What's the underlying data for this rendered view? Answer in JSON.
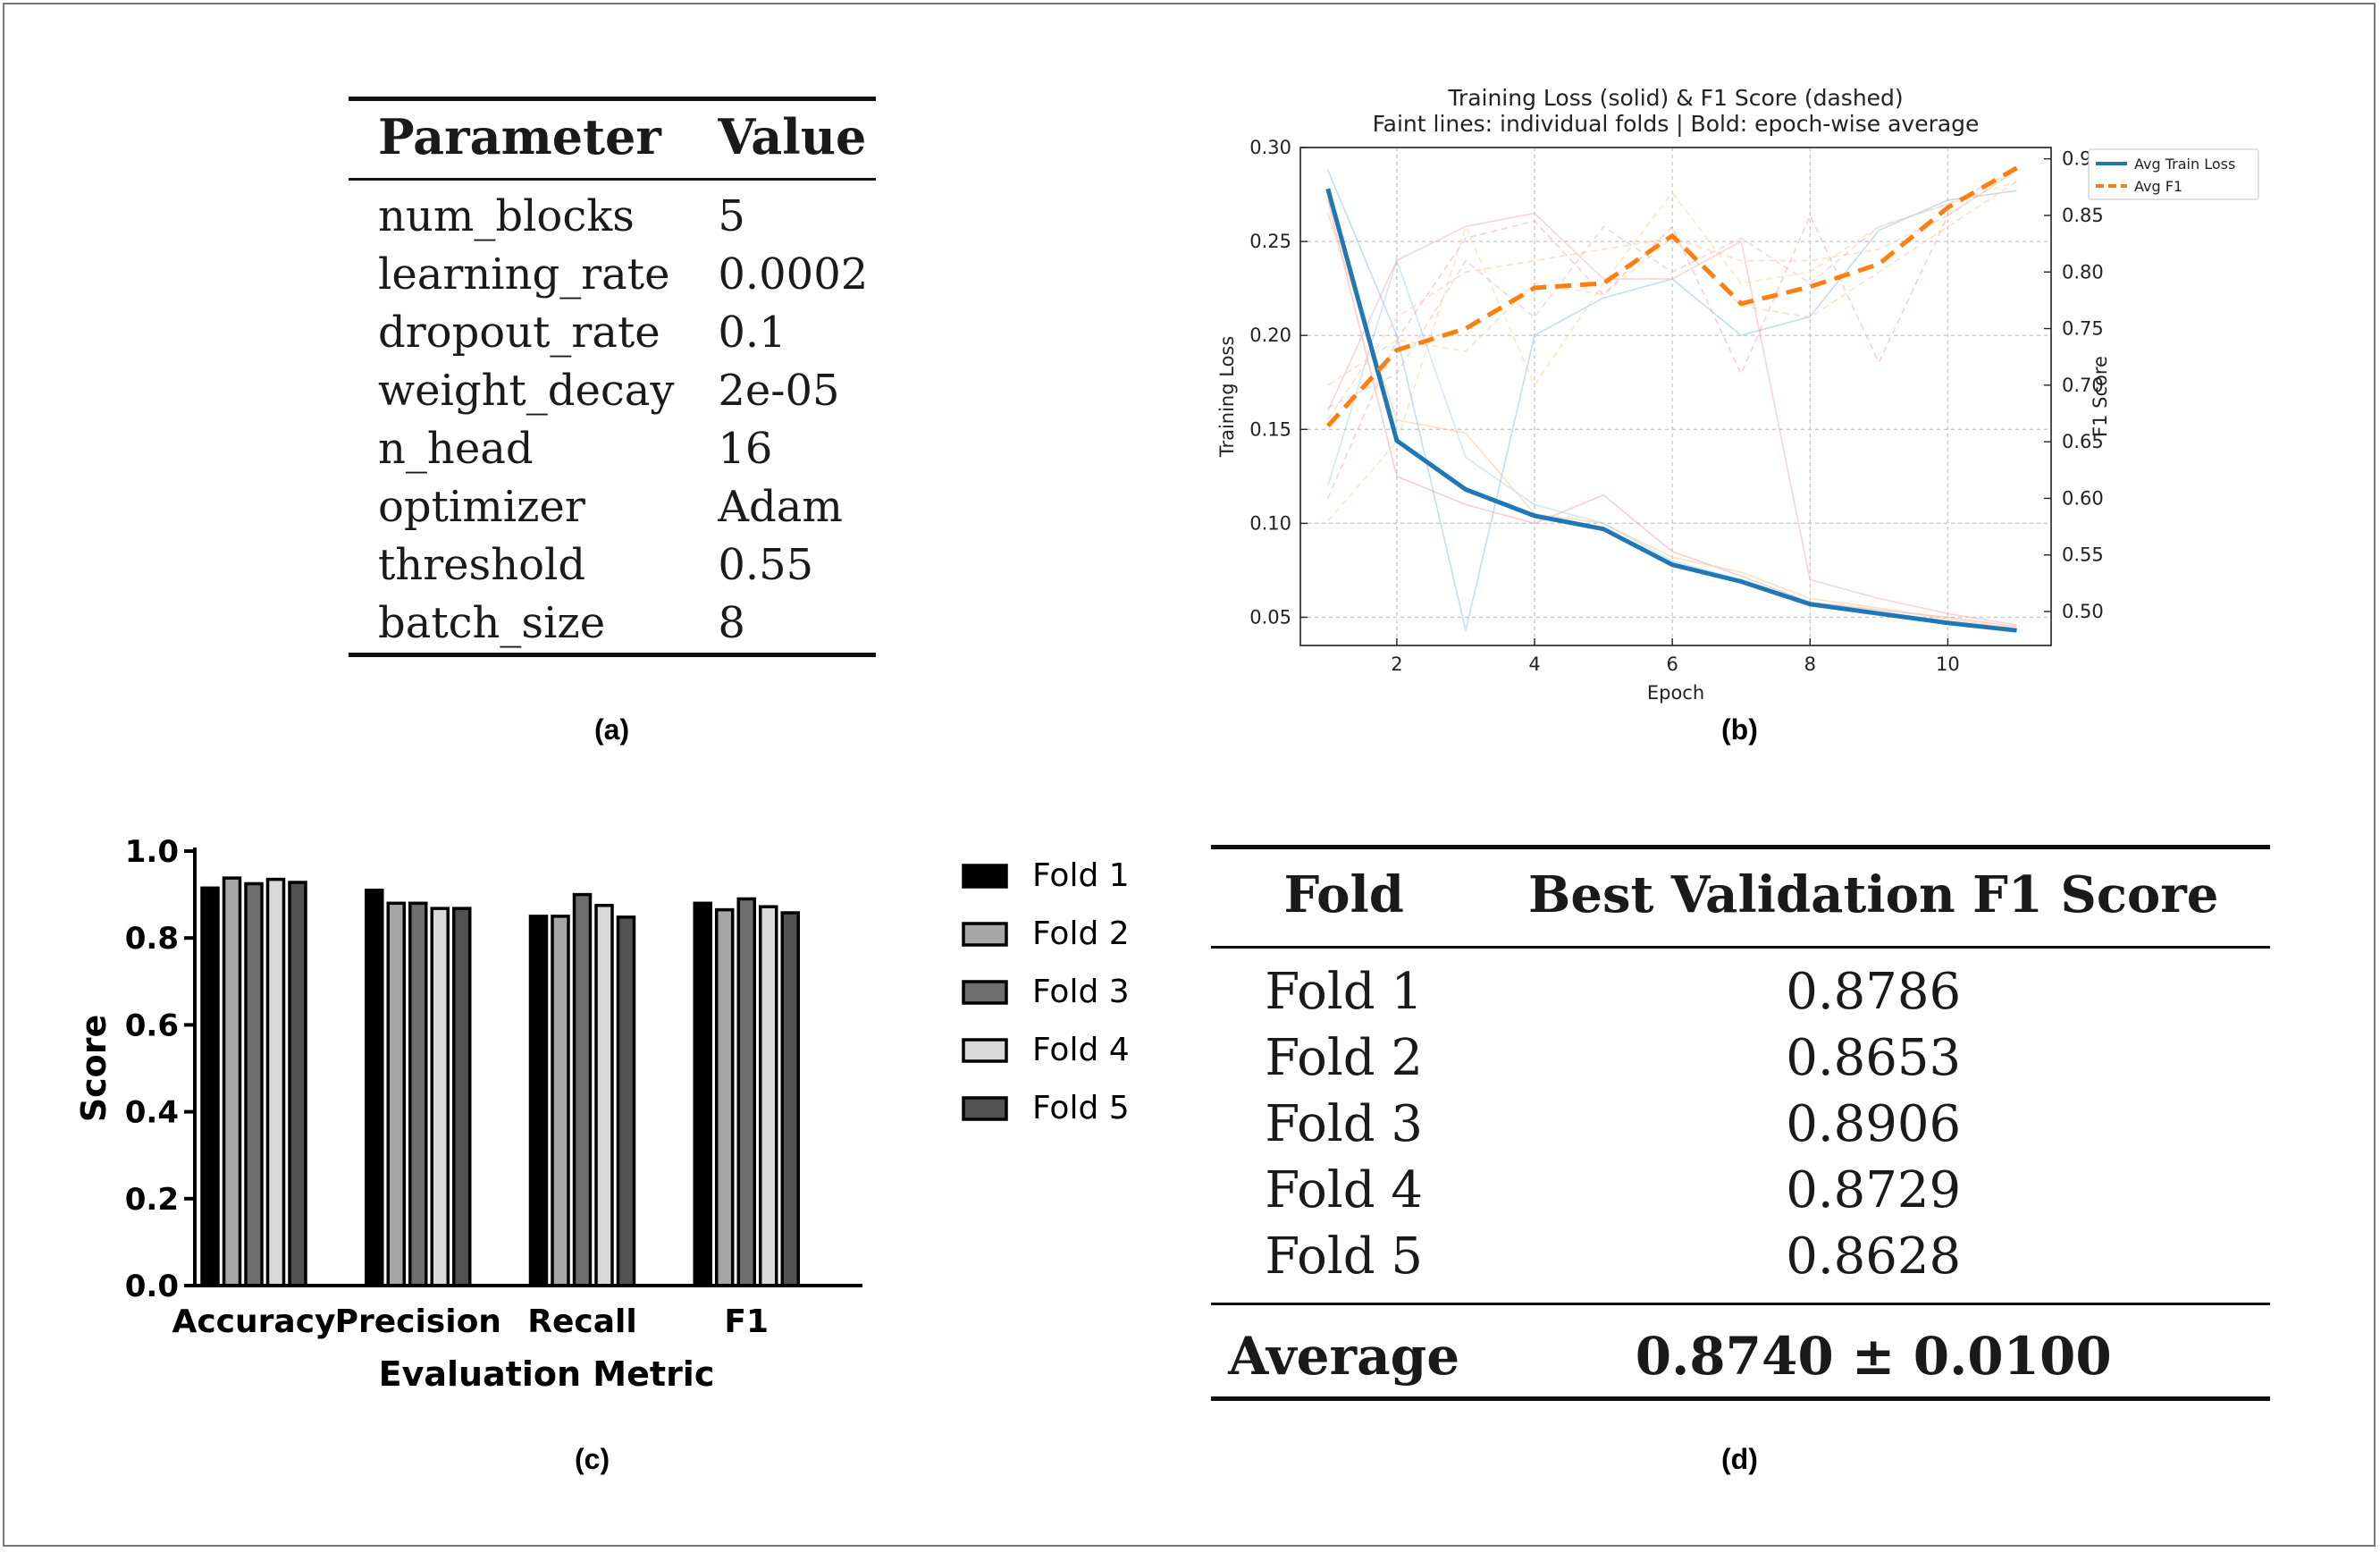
{
  "captions": {
    "a": "(a)",
    "b": "(b)",
    "c": "(c)",
    "d": "(d)"
  },
  "param_table": {
    "headers": [
      "Parameter",
      "Value"
    ],
    "rows": [
      [
        "num_blocks",
        "5"
      ],
      [
        "learning_rate",
        "0.0002"
      ],
      [
        "dropout_rate",
        "0.1"
      ],
      [
        "weight_decay",
        "2e-05"
      ],
      [
        "n_head",
        "16"
      ],
      [
        "optimizer",
        "Adam"
      ],
      [
        "threshold",
        "0.55"
      ],
      [
        "batch_size",
        "8"
      ]
    ]
  },
  "fold_table": {
    "headers": [
      "Fold",
      "Best Validation F1 Score"
    ],
    "rows": [
      [
        "Fold 1",
        "0.8786"
      ],
      [
        "Fold 2",
        "0.8653"
      ],
      [
        "Fold 3",
        "0.8906"
      ],
      [
        "Fold 4",
        "0.8729"
      ],
      [
        "Fold 5",
        "0.8628"
      ]
    ],
    "average": [
      "Average",
      "0.8740 ± 0.0100"
    ]
  },
  "chart_data": [
    {
      "id": "b",
      "type": "line",
      "title": "Training Loss (solid) & F1 Score (dashed)",
      "subtitle": "Faint lines: individual folds | Bold: epoch-wise average",
      "xlabel": "Epoch",
      "ylabel_left": "Training Loss",
      "ylabel_right": "F1 Score",
      "xlim": [
        0.6,
        11.5
      ],
      "ylim_left": [
        0.035,
        0.3
      ],
      "ylim_right": [
        0.47,
        0.91
      ],
      "xticks": [
        2,
        4,
        6,
        8,
        10
      ],
      "yticks_left": [
        0.05,
        0.1,
        0.15,
        0.2,
        0.25,
        0.3
      ],
      "yticks_right": [
        0.5,
        0.55,
        0.6,
        0.65,
        0.7,
        0.75,
        0.8,
        0.85,
        0.9
      ],
      "grid": true,
      "legend_position": "top-right",
      "x": [
        1,
        2,
        3,
        4,
        5,
        6,
        7,
        8,
        9,
        10,
        11
      ],
      "series": [
        {
          "name": "Avg Train Loss",
          "axis": "left",
          "style": "solid",
          "color": "#1f77b4",
          "values": [
            0.278,
            0.144,
            0.118,
            0.104,
            0.097,
            0.078,
            0.069,
            0.057,
            0.052,
            0.047,
            0.043
          ]
        },
        {
          "name": "Avg F1",
          "axis": "right",
          "style": "dashed",
          "color": "#ff7f0e",
          "values": [
            0.664,
            0.731,
            0.75,
            0.786,
            0.79,
            0.832,
            0.772,
            0.787,
            0.807,
            0.857,
            0.892
          ]
        }
      ],
      "fold_lines_loss": [
        [
          0.288,
          0.2,
          0.043,
          0.2,
          0.22,
          0.23,
          0.2,
          0.21,
          0.256,
          0.272,
          0.277
        ],
        [
          0.272,
          0.125,
          0.11,
          0.1,
          0.115,
          0.085,
          0.072,
          0.058,
          0.054,
          0.05,
          0.045
        ],
        [
          0.265,
          0.155,
          0.148,
          0.105,
          0.1,
          0.082,
          0.074,
          0.06,
          0.055,
          0.049,
          0.044
        ],
        [
          0.12,
          0.24,
          0.135,
          0.11,
          0.1,
          0.08,
          0.07,
          0.058,
          0.053,
          0.048,
          0.043
        ],
        [
          0.16,
          0.24,
          0.258,
          0.265,
          0.23,
          0.23,
          0.25,
          0.07,
          0.06,
          0.052,
          0.046
        ]
      ],
      "fold_lines_f1": [
        [
          0.6,
          0.74,
          0.83,
          0.845,
          0.78,
          0.84,
          0.71,
          0.85,
          0.72,
          0.85,
          0.89
        ],
        [
          0.58,
          0.65,
          0.84,
          0.7,
          0.79,
          0.87,
          0.79,
          0.8,
          0.84,
          0.86,
          0.88
        ],
        [
          0.67,
          0.76,
          0.8,
          0.81,
          0.82,
          0.83,
          0.81,
          0.81,
          0.82,
          0.85,
          0.89
        ],
        [
          0.68,
          0.71,
          0.81,
          0.76,
          0.84,
          0.8,
          0.83,
          0.79,
          0.84,
          0.86,
          0.89
        ],
        [
          0.7,
          0.74,
          0.73,
          0.79,
          0.78,
          0.83,
          0.77,
          0.76,
          0.8,
          0.84,
          0.88
        ]
      ]
    },
    {
      "id": "c",
      "type": "bar",
      "xlabel": "Evaluation Metric",
      "ylabel": "Score",
      "ylim": [
        0,
        1.0
      ],
      "yticks": [
        "0.0",
        "0.2",
        "0.4",
        "0.6",
        "0.8",
        "1.0"
      ],
      "categories": [
        "Accuracy",
        "Precision",
        "Recall",
        "F1"
      ],
      "legend_position": "right",
      "series": [
        {
          "name": "Fold 1",
          "fill": "#000000",
          "values": [
            0.915,
            0.91,
            0.85,
            0.88
          ]
        },
        {
          "name": "Fold 2",
          "fill": "#a6a6a6",
          "values": [
            0.938,
            0.88,
            0.85,
            0.865
          ]
        },
        {
          "name": "Fold 3",
          "fill": "#6e6e6e",
          "values": [
            0.925,
            0.88,
            0.9,
            0.89
          ]
        },
        {
          "name": "Fold 4",
          "fill": "#d9d9d9",
          "values": [
            0.935,
            0.868,
            0.875,
            0.872
          ]
        },
        {
          "name": "Fold 5",
          "fill": "#525252",
          "values": [
            0.928,
            0.868,
            0.848,
            0.858
          ]
        }
      ]
    }
  ]
}
